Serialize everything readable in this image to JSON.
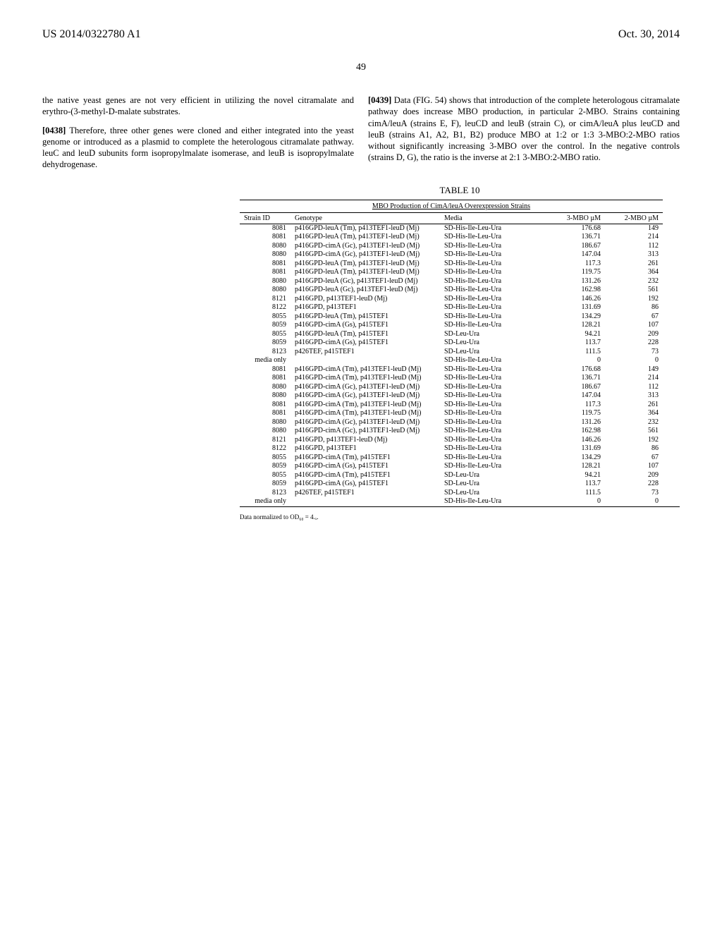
{
  "header": {
    "left": "US 2014/0322780 A1",
    "right": "Oct. 30, 2014"
  },
  "page_number": "49",
  "left_col": {
    "para1": "the native yeast genes are not very efficient in utilizing the novel citramalate and erythro-(3-methyl-D-malate substrates.",
    "para2_num": "[0438]",
    "para2": " Therefore, three other genes were cloned and either integrated into the yeast genome or introduced as a plasmid to complete the heterologous citramalate pathway. leuC and leuD subunits form isopropylmalate isomerase, and leuB is isopropylmalate dehydrogenase."
  },
  "right_col": {
    "para1_num": "[0439]",
    "para1": " Data (FIG. 54) shows that introduction of the complete heterologous citramalate pathway does increase MBO production, in particular 2-MBO. Strains containing cimA/leuA (strains E, F), leuCD and leuB (strain C), or cimA/leuA plus leuCD and leuB (strains A1, A2, B1, B2) produce MBO at 1:2 or 1:3 3-MBO:2-MBO ratios without significantly increasing 3-MBO over the control. In the negative controls (strains D, G), the ratio is the inverse at 2:1 3-MBO:2-MBO ratio."
  },
  "table": {
    "label": "TABLE 10",
    "title": "MBO Production of CimA/leuA Overexpression Strains",
    "columns": [
      "Strain ID",
      "Genotype",
      "Media",
      "3-MBO µM",
      "2-MBO µM"
    ],
    "rows": [
      [
        "8081",
        "p416GPD-leuA (Tm), p413TEF1-leuD (Mj)",
        "SD-His-Ile-Leu-Ura",
        "176.68",
        "149"
      ],
      [
        "8081",
        "p416GPD-leuA (Tm), p413TEF1-leuD (Mj)",
        "SD-His-Ile-Leu-Ura",
        "136.71",
        "214"
      ],
      [
        "8080",
        "p416GPD-cimA (Gc), p413TEF1-leuD (Mj)",
        "SD-His-Ile-Leu-Ura",
        "186.67",
        "112"
      ],
      [
        "8080",
        "p416GPD-cimA (Gc), p413TEF1-leuD (Mj)",
        "SD-His-Ile-Leu-Ura",
        "147.04",
        "313"
      ],
      [
        "8081",
        "p416GPD-leuA (Tm), p413TEF1-leuD (Mj)",
        "SD-His-Ile-Leu-Ura",
        "117.3",
        "261"
      ],
      [
        "8081",
        "p416GPD-leuA (Tm), p413TEF1-leuD (Mj)",
        "SD-His-Ile-Leu-Ura",
        "119.75",
        "364"
      ],
      [
        "8080",
        "p416GPD-leuA (Gc), p413TEF1-leuD (Mj)",
        "SD-His-Ile-Leu-Ura",
        "131.26",
        "232"
      ],
      [
        "8080",
        "p416GPD-leuA (Gc), p413TEF1-leuD (Mj)",
        "SD-His-Ile-Leu-Ura",
        "162.98",
        "561"
      ],
      [
        "8121",
        "p416GPD, p413TEF1-leuD (Mj)",
        "SD-His-Ile-Leu-Ura",
        "146.26",
        "192"
      ],
      [
        "8122",
        "p416GPD, p413TEF1",
        "SD-His-Ile-Leu-Ura",
        "131.69",
        "86"
      ],
      [
        "8055",
        "p416GPD-leuA (Tm), p415TEF1",
        "SD-His-Ile-Leu-Ura",
        "134.29",
        "67"
      ],
      [
        "8059",
        "p416GPD-cimA (Gs), p415TEF1",
        "SD-His-Ile-Leu-Ura",
        "128.21",
        "107"
      ],
      [
        "8055",
        "p416GPD-leuA (Tm), p415TEF1",
        "SD-Leu-Ura",
        "94.21",
        "209"
      ],
      [
        "8059",
        "p416GPD-cimA (Gs), p415TEF1",
        "SD-Leu-Ura",
        "113.7",
        "228"
      ],
      [
        "8123",
        "p426TEF, p415TEF1",
        "SD-Leu-Ura",
        "111.5",
        "73"
      ],
      [
        "media only",
        "",
        "SD-His-Ile-Leu-Ura",
        "0",
        "0"
      ],
      [
        "8081",
        "p416GPD-cimA (Tm), p413TEF1-leuD (Mj)",
        "SD-His-Ile-Leu-Ura",
        "176.68",
        "149"
      ],
      [
        "8081",
        "p416GPD-cimA (Tm), p413TEF1-leuD (Mj)",
        "SD-His-Ile-Leu-Ura",
        "136.71",
        "214"
      ],
      [
        "8080",
        "p416GPD-cimA (Gc), p413TEF1-leuD (Mj)",
        "SD-His-Ile-Leu-Ura",
        "186.67",
        "112"
      ],
      [
        "8080",
        "p416GPD-cimA (Gc), p413TEF1-leuD (Mj)",
        "SD-His-Ile-Leu-Ura",
        "147.04",
        "313"
      ],
      [
        "8081",
        "p416GPD-cimA (Tm), p413TEF1-leuD (Mj)",
        "SD-His-Ile-Leu-Ura",
        "117.3",
        "261"
      ],
      [
        "8081",
        "p416GPD-cimA (Tm), p413TEF1-leuD (Mj)",
        "SD-His-Ile-Leu-Ura",
        "119.75",
        "364"
      ],
      [
        "8080",
        "p416GPD-cimA (Gc), p413TEF1-leuD (Mj)",
        "SD-His-Ile-Leu-Ura",
        "131.26",
        "232"
      ],
      [
        "8080",
        "p416GPD-cimA (Gc), p413TEF1-leuD (Mj)",
        "SD-His-Ile-Leu-Ura",
        "162.98",
        "561"
      ],
      [
        "8121",
        "p416GPD, p413TEF1-leuD (Mj)",
        "SD-His-Ile-Leu-Ura",
        "146.26",
        "192"
      ],
      [
        "8122",
        "p416GPD, p413TEF1",
        "SD-His-Ile-Leu-Ura",
        "131.69",
        "86"
      ],
      [
        "8055",
        "p416GPD-cimA (Tm), p415TEF1",
        "SD-His-Ile-Leu-Ura",
        "134.29",
        "67"
      ],
      [
        "8059",
        "p416GPD-cimA (Gs), p415TEF1",
        "SD-His-Ile-Leu-Ura",
        "128.21",
        "107"
      ],
      [
        "8055",
        "p416GPD-cimA (Tm), p415TEF1",
        "SD-Leu-Ura",
        "94.21",
        "209"
      ],
      [
        "8059",
        "p416GPD-cimA (Gs), p415TEF1",
        "SD-Leu-Ura",
        "113.7",
        "228"
      ],
      [
        "8123",
        "p426TEF, p415TEF1",
        "SD-Leu-Ura",
        "111.5",
        "73"
      ],
      [
        "media only",
        "",
        "SD-His-Ile-Leu-Ura",
        "0",
        "0"
      ]
    ],
    "footnote": "Data normalized to OD₆₀ = 4.ₓ."
  }
}
